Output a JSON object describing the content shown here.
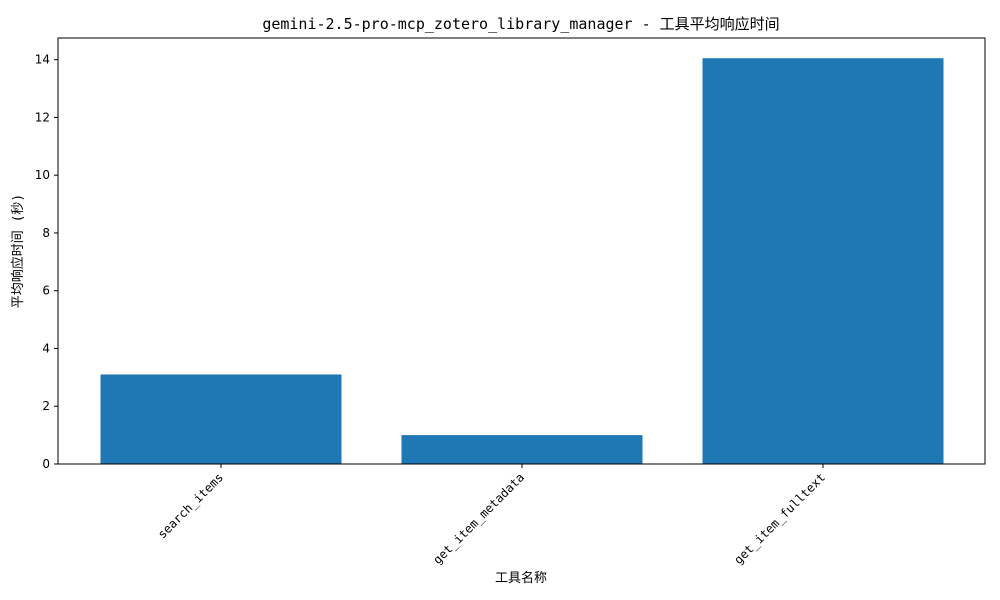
{
  "chart_data": {
    "type": "bar",
    "title": "gemini-2.5-pro-mcp_zotero_library_manager - 工具平均响应时间",
    "xlabel": "工具名称",
    "ylabel": "平均响应时间 (秒)",
    "categories": [
      "search_items",
      "get_item_metadata",
      "get_item_fulltext"
    ],
    "values": [
      3.1,
      1.0,
      14.05
    ],
    "ylim": [
      0,
      14.75
    ],
    "yticks": [
      0,
      2,
      4,
      6,
      8,
      10,
      12,
      14
    ],
    "bar_color": "#1f77b4",
    "grid": false
  }
}
